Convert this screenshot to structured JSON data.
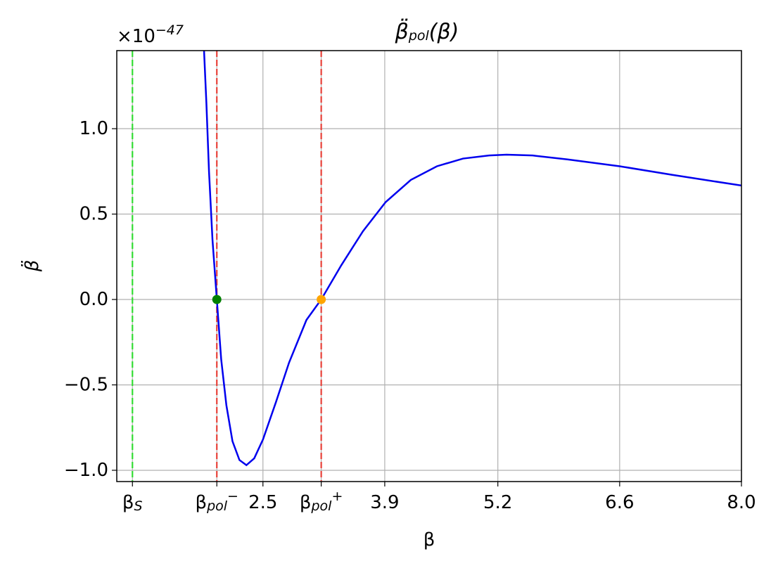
{
  "chart_data": {
    "type": "line",
    "title": "β̈_{pol}(β)",
    "x_label": "β",
    "y_label": "β̈",
    "y_offset_label": "×10^{−47}",
    "xlim": [
      0.82,
      8.0
    ],
    "ylim": [
      -1.066,
      1.457
    ],
    "xticks": [
      {
        "value": 1.0,
        "label": "β_{S}"
      },
      {
        "value": 1.97,
        "label": "β_{pol}^{−}"
      },
      2.5,
      {
        "value": 3.17,
        "label": "β_{pol}^{+}"
      },
      3.9,
      5.2,
      6.6,
      {
        "value": 8.0,
        "label": "8.0"
      }
    ],
    "yticks": [
      {
        "value": -1.0,
        "label": "−1.0"
      },
      {
        "value": -0.5,
        "label": "−0.5"
      },
      {
        "value": 0.0,
        "label": "0.0"
      },
      0.5,
      {
        "value": 1.0,
        "label": "1.0"
      }
    ],
    "grid": true,
    "series": [
      {
        "color": "#0000ee",
        "x": [
          1.823,
          1.85,
          1.88,
          1.92,
          1.97,
          2.02,
          2.08,
          2.15,
          2.23,
          2.31,
          2.4,
          2.5,
          2.65,
          2.8,
          3.0,
          3.17,
          3.4,
          3.65,
          3.91,
          4.2,
          4.5,
          4.8,
          5.1,
          5.3,
          5.6,
          6.0,
          6.6,
          7.2,
          8.0
        ],
        "values": [
          1.457,
          1.15,
          0.75,
          0.35,
          0.0,
          -0.35,
          -0.62,
          -0.83,
          -0.94,
          -0.97,
          -0.93,
          -0.82,
          -0.6,
          -0.37,
          -0.12,
          0.0,
          0.2,
          0.4,
          0.57,
          0.7,
          0.78,
          0.825,
          0.843,
          0.848,
          0.843,
          0.82,
          0.78,
          0.73,
          0.667
        ]
      }
    ],
    "vlines": [
      {
        "x": 1.0,
        "color": "#33dd33"
      },
      {
        "x": 1.97,
        "color": "#e8423a"
      },
      {
        "x": 3.17,
        "color": "#e8423a"
      }
    ],
    "markers": [
      {
        "x": 1.97,
        "y": 0.0,
        "color": "#008000"
      },
      {
        "x": 3.17,
        "y": 0.0,
        "color": "#ffa500"
      }
    ]
  }
}
